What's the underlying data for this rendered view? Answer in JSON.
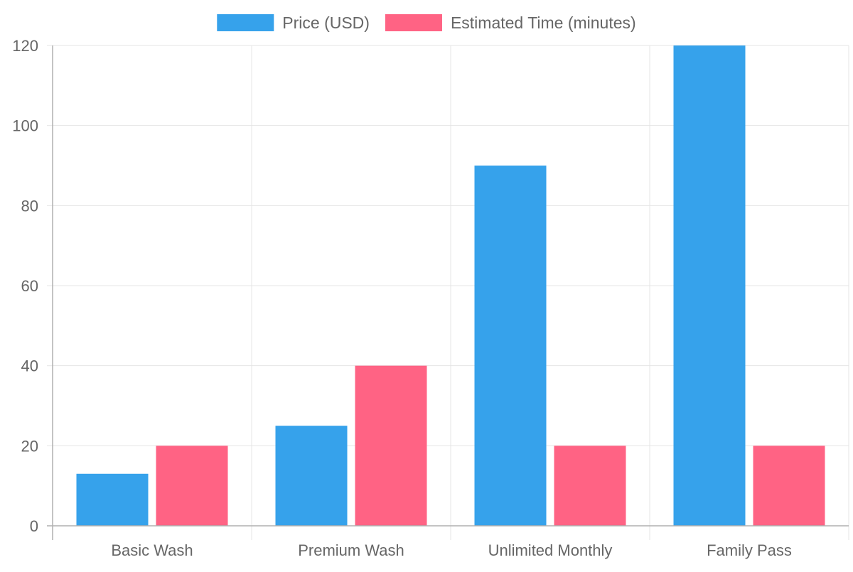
{
  "chart_data": {
    "type": "bar",
    "categories": [
      "Basic Wash",
      "Premium Wash",
      "Unlimited Monthly",
      "Family Pass"
    ],
    "series": [
      {
        "name": "Price (USD)",
        "values": [
          13,
          25,
          90,
          120
        ],
        "color": "#36a2eb"
      },
      {
        "name": "Estimated Time (minutes)",
        "values": [
          20,
          40,
          20,
          20
        ],
        "color": "#ff6384"
      }
    ],
    "y_ticks": [
      "0",
      "20",
      "40",
      "60",
      "80",
      "100",
      "120"
    ],
    "ylim": [
      0,
      120
    ],
    "grid": true,
    "legend_position": "top-center",
    "colors": {
      "grid": "#e5e5e5",
      "axis": "#b0b0b0",
      "text": "#666666"
    }
  }
}
